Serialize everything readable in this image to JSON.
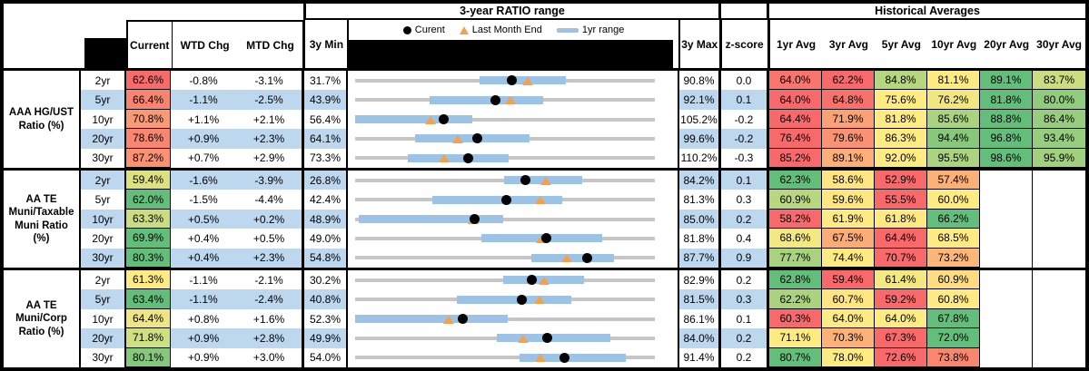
{
  "header": {
    "ratio_section_title": "3-year RATIO range",
    "averages_section_title": "Historical Averages",
    "columns": {
      "current": "Current",
      "wtd": "WTD Chg",
      "mtd": "MTD Chg",
      "min": "3y Min",
      "max": "3y Max",
      "zscore": "z-score"
    },
    "avg_columns": [
      "1yr Avg",
      "3yr Avg",
      "5yr Avg",
      "10yr Avg",
      "20yr Avg",
      "30yr Avg"
    ],
    "legend": {
      "current": "Curent",
      "last_month": "Last Month End",
      "range": "1yr range"
    }
  },
  "colors": {
    "stripe_blue": "#BDD7EE",
    "range_bar_blue": "#9CC2E5",
    "range_line_gray": "#C6C6C6",
    "marker_orange": "#F2A24D",
    "marker_black": "#000000",
    "scale_red": "#F8696B",
    "scale_yellow": "#FFEB84",
    "scale_green": "#63BE7B"
  },
  "groups": [
    {
      "label": "AAA HG/UST Ratio (%)",
      "rows": [
        {
          "tenor": "2yr",
          "current": "62.6%",
          "current_color": "#F86B6B",
          "wtd": "-0.8%",
          "mtd": "-3.1%",
          "min": "31.7%",
          "max": "90.8%",
          "zscore": "0.0",
          "chart": {
            "min": 31.7,
            "max": 90.8,
            "bar_lo": 56.3,
            "bar_hi": 73.2,
            "dot": 62.6,
            "tri": 65.7
          },
          "avgs": [
            "64.0%",
            "62.2%",
            "84.8%",
            "81.1%",
            "89.1%",
            "83.7%"
          ],
          "avg_colors": [
            "#F9756D",
            "#F8696B",
            "#B7D680",
            "#FFEB84",
            "#63BE7B",
            "#CCDC81"
          ]
        },
        {
          "tenor": "5yr",
          "current": "66.4%",
          "current_color": "#F98470",
          "wtd": "-1.1%",
          "mtd": "-2.5%",
          "min": "43.9%",
          "max": "92.1%",
          "zscore": "0.1",
          "chart": {
            "min": 43.9,
            "max": 92.1,
            "bar_lo": 55.9,
            "bar_hi": 74.1,
            "dot": 66.4,
            "tri": 68.9
          },
          "avgs": [
            "64.0%",
            "64.8%",
            "75.6%",
            "76.2%",
            "81.8%",
            "80.0%"
          ],
          "avg_colors": [
            "#F8696B",
            "#F8726D",
            "#FFEB84",
            "#F0E783",
            "#63BE7B",
            "#90CB7E"
          ]
        },
        {
          "tenor": "10yr",
          "current": "70.8%",
          "current_color": "#FB9974",
          "wtd": "+1.1%",
          "mtd": "+2.1%",
          "min": "56.4%",
          "max": "105.2%",
          "zscore": "-0.2",
          "chart": {
            "min": 56.4,
            "max": 105.2,
            "bar_lo": 56.4,
            "bar_hi": 75.5,
            "dot": 70.8,
            "tri": 68.7
          },
          "avgs": [
            "64.4%",
            "71.9%",
            "81.8%",
            "85.6%",
            "88.8%",
            "86.4%"
          ],
          "avg_colors": [
            "#F8696B",
            "#FBA176",
            "#FFEB84",
            "#AAD37F",
            "#63BE7B",
            "#98CD7E"
          ]
        },
        {
          "tenor": "20yr",
          "current": "78.6%",
          "current_color": "#F98670",
          "wtd": "+0.9%",
          "mtd": "+2.3%",
          "min": "64.1%",
          "max": "99.6%",
          "zscore": "-0.2",
          "chart": {
            "min": 64.1,
            "max": 99.6,
            "bar_lo": 71.2,
            "bar_hi": 84.7,
            "dot": 78.6,
            "tri": 76.3
          },
          "avgs": [
            "76.4%",
            "79.6%",
            "86.3%",
            "94.4%",
            "96.8%",
            "93.4%"
          ],
          "avg_colors": [
            "#F8696B",
            "#FA9373",
            "#FFEB84",
            "#87C87D",
            "#63BE7B",
            "#96CD7E"
          ]
        },
        {
          "tenor": "30yr",
          "current": "87.2%",
          "current_color": "#FA9171",
          "wtd": "+0.7%",
          "mtd": "+2.9%",
          "min": "73.3%",
          "max": "110.2%",
          "zscore": "-0.3",
          "chart": {
            "min": 73.3,
            "max": 110.2,
            "bar_lo": 79.8,
            "bar_hi": 92.2,
            "dot": 87.2,
            "tri": 84.3
          },
          "avgs": [
            "85.2%",
            "89.1%",
            "92.0%",
            "95.5%",
            "98.6%",
            "95.9%"
          ],
          "avg_colors": [
            "#F8696B",
            "#FCAF78",
            "#FFEB84",
            "#ACD37F",
            "#63BE7B",
            "#A3D07F"
          ]
        }
      ]
    },
    {
      "label": "AA TE Muni/Taxable Muni Ratio (%)",
      "rows": [
        {
          "tenor": "2yr",
          "current": "59.4%",
          "current_color": "#DDE182",
          "wtd": "-1.6%",
          "mtd": "-3.9%",
          "min": "26.8%",
          "max": "84.2%",
          "zscore": "0.1",
          "chart": {
            "min": 26.8,
            "max": 84.2,
            "bar_lo": 55.3,
            "bar_hi": 70.3,
            "dot": 59.4,
            "tri": 63.3
          },
          "avgs": [
            "62.3%",
            "58.6%",
            "52.9%",
            "57.4%",
            "",
            ""
          ],
          "avg_colors": [
            "#63BE7B",
            "#FFE583",
            "#F8696B",
            "#FBB078",
            "",
            ""
          ]
        },
        {
          "tenor": "5yr",
          "current": "62.0%",
          "current_color": "#63BE7B",
          "wtd": "-1.5%",
          "mtd": "-4.4%",
          "min": "42.4%",
          "max": "81.3%",
          "zscore": "0.3",
          "chart": {
            "min": 42.4,
            "max": 81.3,
            "bar_lo": 52.4,
            "bar_hi": 69.3,
            "dot": 62.0,
            "tri": 66.4
          },
          "avgs": [
            "60.9%",
            "59.6%",
            "55.5%",
            "60.0%",
            "",
            ""
          ],
          "avg_colors": [
            "#B9D780",
            "#FEE782",
            "#F8696B",
            "#FFEB84",
            "",
            ""
          ]
        },
        {
          "tenor": "10yr",
          "current": "63.3%",
          "current_color": "#CCDC81",
          "wtd": "+0.5%",
          "mtd": "+0.2%",
          "min": "48.9%",
          "max": "85.0%",
          "zscore": "0.2",
          "chart": {
            "min": 48.9,
            "max": 85.0,
            "bar_lo": 49.3,
            "bar_hi": 66.7,
            "dot": 63.3,
            "tri": 63.1
          },
          "avgs": [
            "58.2%",
            "61.9%",
            "61.8%",
            "66.2%",
            "",
            ""
          ],
          "avg_colors": [
            "#F8696B",
            "#FFEB84",
            "#FFE983",
            "#63BE7B",
            "",
            ""
          ]
        },
        {
          "tenor": "20yr",
          "current": "69.9%",
          "current_color": "#63BE7B",
          "wtd": "+0.4%",
          "mtd": "+0.5%",
          "min": "49.0%",
          "max": "81.8%",
          "zscore": "0.4",
          "chart": {
            "min": 49.0,
            "max": 81.8,
            "bar_lo": 62.8,
            "bar_hi": 76.0,
            "dot": 69.9,
            "tri": 69.4
          },
          "avgs": [
            "68.6%",
            "67.5%",
            "64.4%",
            "68.5%",
            "",
            ""
          ],
          "avg_colors": [
            "#F4E883",
            "#FBAD77",
            "#F8696B",
            "#FFEB84",
            "",
            ""
          ]
        },
        {
          "tenor": "30yr",
          "current": "80.3%",
          "current_color": "#63BE7B",
          "wtd": "+0.4%",
          "mtd": "+2.3%",
          "min": "54.8%",
          "max": "87.7%",
          "zscore": "0.9",
          "chart": {
            "min": 54.8,
            "max": 87.7,
            "bar_lo": 74.1,
            "bar_hi": 83.2,
            "dot": 80.3,
            "tri": 78.0
          },
          "avgs": [
            "77.7%",
            "74.4%",
            "70.7%",
            "73.2%",
            "",
            ""
          ],
          "avg_colors": [
            "#A8D27F",
            "#FFEB84",
            "#F8696B",
            "#FBB77A",
            "",
            ""
          ]
        }
      ]
    },
    {
      "label": "AA TE Muni/Corp Ratio (%)",
      "rows": [
        {
          "tenor": "2yr",
          "current": "61.3%",
          "current_color": "#FFEB84",
          "wtd": "-1.1%",
          "mtd": "-2.1%",
          "min": "30.2%",
          "max": "82.9%",
          "zscore": "0.2",
          "chart": {
            "min": 30.2,
            "max": 82.9,
            "bar_lo": 56.2,
            "bar_hi": 70.4,
            "dot": 61.3,
            "tri": 63.4
          },
          "avgs": [
            "62.8%",
            "59.4%",
            "61.4%",
            "60.9%",
            "",
            ""
          ],
          "avg_colors": [
            "#63BE7B",
            "#F8696B",
            "#F4E883",
            "#FEDC81",
            "",
            ""
          ]
        },
        {
          "tenor": "5yr",
          "current": "63.4%",
          "current_color": "#63BE7B",
          "wtd": "-1.1%",
          "mtd": "-2.4%",
          "min": "40.8%",
          "max": "81.5%",
          "zscore": "0.3",
          "chart": {
            "min": 40.8,
            "max": 81.5,
            "bar_lo": 54.6,
            "bar_hi": 70.2,
            "dot": 63.4,
            "tri": 65.8
          },
          "avgs": [
            "62.2%",
            "60.7%",
            "59.2%",
            "60.8%",
            "",
            ""
          ],
          "avg_colors": [
            "#ABD37F",
            "#FFE682",
            "#F8696B",
            "#FFEB84",
            "",
            ""
          ]
        },
        {
          "tenor": "10yr",
          "current": "64.4%",
          "current_color": "#EFE683",
          "wtd": "+0.8%",
          "mtd": "+1.6%",
          "min": "52.3%",
          "max": "86.1%",
          "zscore": "0.1",
          "chart": {
            "min": 52.3,
            "max": 86.1,
            "bar_lo": 52.3,
            "bar_hi": 69.5,
            "dot": 64.4,
            "tri": 62.8
          },
          "avgs": [
            "60.3%",
            "64.0%",
            "64.0%",
            "67.8%",
            "",
            ""
          ],
          "avg_colors": [
            "#F8696B",
            "#FFEB84",
            "#FFEB84",
            "#63BE7B",
            "",
            ""
          ]
        },
        {
          "tenor": "20yr",
          "current": "71.8%",
          "current_color": "#CFE082",
          "wtd": "+0.9%",
          "mtd": "+2.8%",
          "min": "49.9%",
          "max": "84.0%",
          "zscore": "0.2",
          "chart": {
            "min": 49.9,
            "max": 84.0,
            "bar_lo": 66.0,
            "bar_hi": 78.9,
            "dot": 71.8,
            "tri": 69.0
          },
          "avgs": [
            "71.1%",
            "70.3%",
            "67.3%",
            "72.0%",
            "",
            ""
          ],
          "avg_colors": [
            "#FFEB84",
            "#FBB278",
            "#F8696B",
            "#63BE7B",
            "",
            ""
          ]
        },
        {
          "tenor": "30yr",
          "current": "80.1%",
          "current_color": "#85C87D",
          "wtd": "+0.9%",
          "mtd": "+3.0%",
          "min": "54.0%",
          "max": "91.4%",
          "zscore": "0.2",
          "chart": {
            "min": 54.0,
            "max": 91.4,
            "bar_lo": 74.5,
            "bar_hi": 87.8,
            "dot": 80.1,
            "tri": 77.1
          },
          "avgs": [
            "80.7%",
            "78.0%",
            "72.6%",
            "73.8%",
            "",
            ""
          ],
          "avg_colors": [
            "#63BE7B",
            "#FFEB84",
            "#F8696B",
            "#FA8670",
            "",
            ""
          ]
        }
      ]
    }
  ],
  "chart_data": {
    "type": "table",
    "title": "3-year RATIO range with historical averages",
    "legend_position": "top of range column",
    "groups": [
      {
        "name": "AAA HG/UST Ratio (%)",
        "rows": [
          {
            "tenor": "2yr",
            "current": 62.6,
            "wtd_chg": -0.8,
            "mtd_chg": -3.1,
            "min_3y": 31.7,
            "range_1yr": [
              56.3,
              73.2
            ],
            "last_month_end": 65.7,
            "max_3y": 90.8,
            "z_score": 0.0,
            "avg_1yr": 64.0,
            "avg_3yr": 62.2,
            "avg_5yr": 84.8,
            "avg_10yr": 81.1,
            "avg_20yr": 89.1,
            "avg_30yr": 83.7
          },
          {
            "tenor": "5yr",
            "current": 66.4,
            "wtd_chg": -1.1,
            "mtd_chg": -2.5,
            "min_3y": 43.9,
            "range_1yr": [
              55.9,
              74.1
            ],
            "last_month_end": 68.9,
            "max_3y": 92.1,
            "z_score": 0.1,
            "avg_1yr": 64.0,
            "avg_3yr": 64.8,
            "avg_5yr": 75.6,
            "avg_10yr": 76.2,
            "avg_20yr": 81.8,
            "avg_30yr": 80.0
          },
          {
            "tenor": "10yr",
            "current": 70.8,
            "wtd_chg": 1.1,
            "mtd_chg": 2.1,
            "min_3y": 56.4,
            "range_1yr": [
              56.4,
              75.5
            ],
            "last_month_end": 68.7,
            "max_3y": 105.2,
            "z_score": -0.2,
            "avg_1yr": 64.4,
            "avg_3yr": 71.9,
            "avg_5yr": 81.8,
            "avg_10yr": 85.6,
            "avg_20yr": 88.8,
            "avg_30yr": 86.4
          },
          {
            "tenor": "20yr",
            "current": 78.6,
            "wtd_chg": 0.9,
            "mtd_chg": 2.3,
            "min_3y": 64.1,
            "range_1yr": [
              71.2,
              84.7
            ],
            "last_month_end": 76.3,
            "max_3y": 99.6,
            "z_score": -0.2,
            "avg_1yr": 76.4,
            "avg_3yr": 79.6,
            "avg_5yr": 86.3,
            "avg_10yr": 94.4,
            "avg_20yr": 96.8,
            "avg_30yr": 93.4
          },
          {
            "tenor": "30yr",
            "current": 87.2,
            "wtd_chg": 0.7,
            "mtd_chg": 2.9,
            "min_3y": 73.3,
            "range_1yr": [
              79.8,
              92.2
            ],
            "last_month_end": 84.3,
            "max_3y": 110.2,
            "z_score": -0.3,
            "avg_1yr": 85.2,
            "avg_3yr": 89.1,
            "avg_5yr": 92.0,
            "avg_10yr": 95.5,
            "avg_20yr": 98.6,
            "avg_30yr": 95.9
          }
        ]
      },
      {
        "name": "AA TE Muni/Taxable Muni Ratio (%)",
        "rows": [
          {
            "tenor": "2yr",
            "current": 59.4,
            "wtd_chg": -1.6,
            "mtd_chg": -3.9,
            "min_3y": 26.8,
            "range_1yr": [
              55.3,
              70.3
            ],
            "last_month_end": 63.3,
            "max_3y": 84.2,
            "z_score": 0.1,
            "avg_1yr": 62.3,
            "avg_3yr": 58.6,
            "avg_5yr": 52.9,
            "avg_10yr": 57.4
          },
          {
            "tenor": "5yr",
            "current": 62.0,
            "wtd_chg": -1.5,
            "mtd_chg": -4.4,
            "min_3y": 42.4,
            "range_1yr": [
              52.4,
              69.3
            ],
            "last_month_end": 66.4,
            "max_3y": 81.3,
            "z_score": 0.3,
            "avg_1yr": 60.9,
            "avg_3yr": 59.6,
            "avg_5yr": 55.5,
            "avg_10yr": 60.0
          },
          {
            "tenor": "10yr",
            "current": 63.3,
            "wtd_chg": 0.5,
            "mtd_chg": 0.2,
            "min_3y": 48.9,
            "range_1yr": [
              49.3,
              66.7
            ],
            "last_month_end": 63.1,
            "max_3y": 85.0,
            "z_score": 0.2,
            "avg_1yr": 58.2,
            "avg_3yr": 61.9,
            "avg_5yr": 61.8,
            "avg_10yr": 66.2
          },
          {
            "tenor": "20yr",
            "current": 69.9,
            "wtd_chg": 0.4,
            "mtd_chg": 0.5,
            "min_3y": 49.0,
            "range_1yr": [
              62.8,
              76.0
            ],
            "last_month_end": 69.4,
            "max_3y": 81.8,
            "z_score": 0.4,
            "avg_1yr": 68.6,
            "avg_3yr": 67.5,
            "avg_5yr": 64.4,
            "avg_10yr": 68.5
          },
          {
            "tenor": "30yr",
            "current": 80.3,
            "wtd_chg": 0.4,
            "mtd_chg": 2.3,
            "min_3y": 54.8,
            "range_1yr": [
              74.1,
              83.2
            ],
            "last_month_end": 78.0,
            "max_3y": 87.7,
            "z_score": 0.9,
            "avg_1yr": 77.7,
            "avg_3yr": 74.4,
            "avg_5yr": 70.7,
            "avg_10yr": 73.2
          }
        ]
      },
      {
        "name": "AA TE Muni/Corp Ratio (%)",
        "rows": [
          {
            "tenor": "2yr",
            "current": 61.3,
            "wtd_chg": -1.1,
            "mtd_chg": -2.1,
            "min_3y": 30.2,
            "range_1yr": [
              56.2,
              70.4
            ],
            "last_month_end": 63.4,
            "max_3y": 82.9,
            "z_score": 0.2,
            "avg_1yr": 62.8,
            "avg_3yr": 59.4,
            "avg_5yr": 61.4,
            "avg_10yr": 60.9
          },
          {
            "tenor": "5yr",
            "current": 63.4,
            "wtd_chg": -1.1,
            "mtd_chg": -2.4,
            "min_3y": 40.8,
            "range_1yr": [
              54.6,
              70.2
            ],
            "last_month_end": 65.8,
            "max_3y": 81.5,
            "z_score": 0.3,
            "avg_1yr": 62.2,
            "avg_3yr": 60.7,
            "avg_5yr": 59.2,
            "avg_10yr": 60.8
          },
          {
            "tenor": "10yr",
            "current": 64.4,
            "wtd_chg": 0.8,
            "mtd_chg": 1.6,
            "min_3y": 52.3,
            "range_1yr": [
              52.3,
              69.5
            ],
            "last_month_end": 62.8,
            "max_3y": 86.1,
            "z_score": 0.1,
            "avg_1yr": 60.3,
            "avg_3yr": 64.0,
            "avg_5yr": 64.0,
            "avg_10yr": 67.8
          },
          {
            "tenor": "20yr",
            "current": 71.8,
            "wtd_chg": 0.9,
            "mtd_chg": 2.8,
            "min_3y": 49.9,
            "range_1yr": [
              66.0,
              78.9
            ],
            "last_month_end": 69.0,
            "max_3y": 84.0,
            "z_score": 0.2,
            "avg_1yr": 71.1,
            "avg_3yr": 70.3,
            "avg_5yr": 67.3,
            "avg_10yr": 72.0
          },
          {
            "tenor": "30yr",
            "current": 80.1,
            "wtd_chg": 0.9,
            "mtd_chg": 3.0,
            "min_3y": 54.0,
            "range_1yr": [
              74.5,
              87.8
            ],
            "last_month_end": 77.1,
            "max_3y": 91.4,
            "z_score": 0.2,
            "avg_1yr": 80.7,
            "avg_3yr": 78.0,
            "avg_5yr": 72.6,
            "avg_10yr": 73.8
          }
        ]
      }
    ]
  }
}
